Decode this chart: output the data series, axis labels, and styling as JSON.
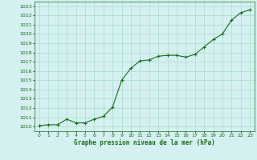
{
  "x": [
    0,
    1,
    2,
    3,
    4,
    5,
    6,
    7,
    8,
    9,
    10,
    11,
    12,
    13,
    14,
    15,
    16,
    17,
    18,
    19,
    20,
    21,
    22,
    23
  ],
  "y": [
    1010.1,
    1010.2,
    1010.2,
    1010.8,
    1010.4,
    1010.4,
    1010.8,
    1011.1,
    1012.1,
    1015.0,
    1016.3,
    1017.1,
    1017.2,
    1017.6,
    1017.7,
    1017.7,
    1017.5,
    1017.8,
    1018.6,
    1019.4,
    1020.0,
    1021.5,
    1022.3,
    1022.6
  ],
  "line_color": "#1a6b1a",
  "marker": "+",
  "marker_size": 3,
  "linewidth": 0.8,
  "bg_color": "#d4f0f0",
  "grid_color": "#aaddcc",
  "ylim_min": 1009.5,
  "ylim_max": 1023.5,
  "ytick_min": 1010,
  "ytick_max": 1023,
  "xlabel": "Graphe pression niveau de la mer (hPa)",
  "xlabel_color": "#1a6b1a",
  "tick_label_color": "#1a6b1a"
}
